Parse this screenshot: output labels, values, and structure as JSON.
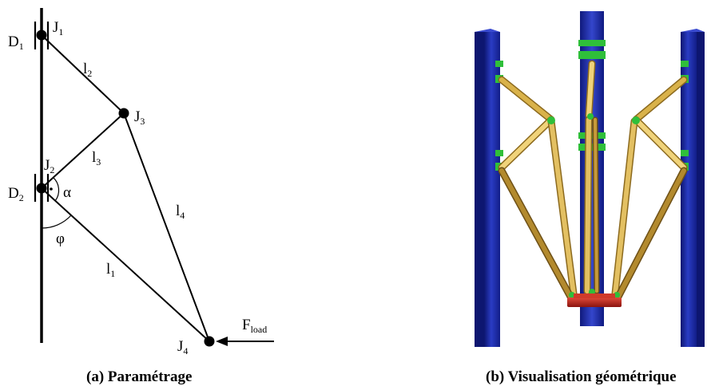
{
  "left_diagram": {
    "guides": [
      {
        "main": "D",
        "sub": "1"
      },
      {
        "main": "D",
        "sub": "2"
      }
    ],
    "joints": [
      {
        "main": "J",
        "sub": "1"
      },
      {
        "main": "J",
        "sub": "2"
      },
      {
        "main": "J",
        "sub": "3"
      },
      {
        "main": "J",
        "sub": "4"
      }
    ],
    "links": [
      {
        "main": "l",
        "sub": "1"
      },
      {
        "main": "l",
        "sub": "2"
      },
      {
        "main": "l",
        "sub": "3"
      },
      {
        "main": "l",
        "sub": "4"
      }
    ],
    "angles": {
      "alpha": "α",
      "phi": "φ"
    },
    "force": {
      "main": "F",
      "sub": "load"
    },
    "caption": "(a) Paramétrage"
  },
  "right_render": {
    "caption": "(b) Visualisation géométrique",
    "colors": {
      "column": "#1c2aa8",
      "column_dark": "#0d1670",
      "column_light": "#3a4bd0",
      "rod": "#d9b24a",
      "rod_dark": "#8c6a1e",
      "rod_light": "#f3db8a",
      "joint": "#2fbf3a",
      "platform": "#c0201c"
    }
  }
}
